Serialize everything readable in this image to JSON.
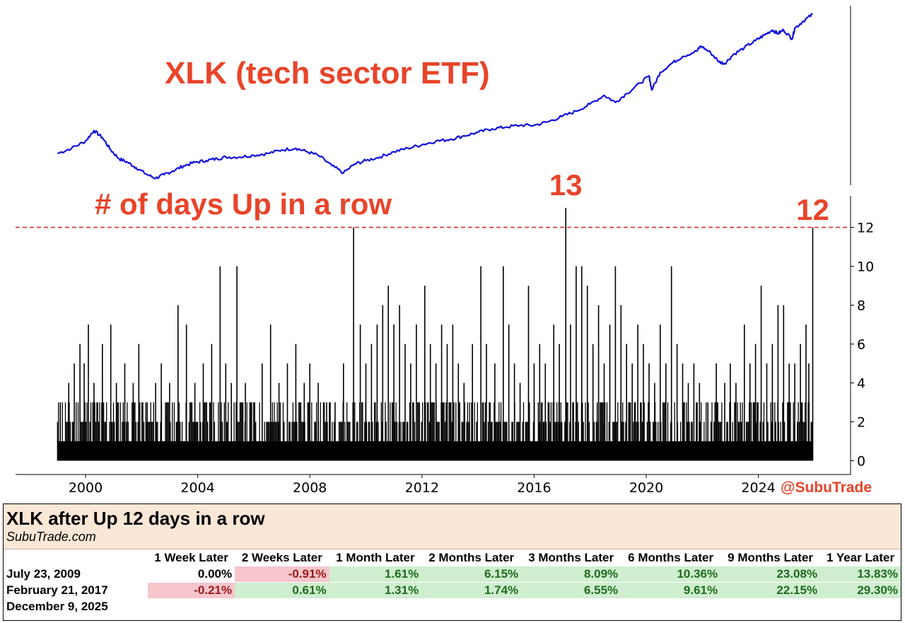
{
  "chart_data": [
    {
      "type": "line",
      "title": "XLK (tech sector ETF)",
      "series": [
        {
          "name": "XLK",
          "color": "#1010e0",
          "x": [
            1999.0,
            1999.5,
            2000.0,
            2000.3,
            2000.6,
            2000.9,
            2001.2,
            2001.5,
            2001.8,
            2002.2,
            2002.5,
            2002.8,
            2003.1,
            2003.5,
            2003.9,
            2004.3,
            2004.7,
            2005.0,
            2005.5,
            2006.0,
            2006.5,
            2007.0,
            2007.5,
            2007.9,
            2008.3,
            2008.8,
            2009.2,
            2009.6,
            2010.0,
            2010.5,
            2011.0,
            2011.5,
            2012.0,
            2012.5,
            2013.0,
            2013.5,
            2014.0,
            2014.5,
            2015.0,
            2015.5,
            2016.0,
            2016.5,
            2017.0,
            2017.5,
            2018.0,
            2018.5,
            2018.9,
            2019.3,
            2019.8,
            2020.1,
            2020.2,
            2020.5,
            2020.9,
            2021.3,
            2021.8,
            2021.95,
            2022.3,
            2022.6,
            2022.8,
            2023.1,
            2023.5,
            2023.9,
            2024.2,
            2024.5,
            2024.7,
            2024.9,
            2025.2,
            2025.3,
            2025.6,
            2025.94
          ],
          "values": [
            0.12,
            0.15,
            0.19,
            0.25,
            0.21,
            0.14,
            0.09,
            0.07,
            0.04,
            0.0,
            -0.02,
            0.0,
            0.02,
            0.05,
            0.07,
            0.08,
            0.09,
            0.1,
            0.1,
            0.11,
            0.12,
            0.14,
            0.15,
            0.13,
            0.11,
            0.05,
            0.01,
            0.06,
            0.08,
            0.1,
            0.13,
            0.15,
            0.17,
            0.19,
            0.2,
            0.22,
            0.24,
            0.26,
            0.27,
            0.28,
            0.28,
            0.3,
            0.33,
            0.36,
            0.4,
            0.45,
            0.41,
            0.46,
            0.52,
            0.56,
            0.48,
            0.58,
            0.63,
            0.67,
            0.7,
            0.73,
            0.69,
            0.64,
            0.63,
            0.68,
            0.72,
            0.76,
            0.79,
            0.82,
            0.8,
            0.82,
            0.77,
            0.83,
            0.87,
            0.91
          ]
        }
      ]
    },
    {
      "type": "bar",
      "title": "# of days Up in a row",
      "xlim": [
        1997.5,
        2027.0
      ],
      "ylim": [
        -0.5,
        13.5
      ],
      "x_ticks": [
        "2000",
        "2004",
        "2008",
        "2012",
        "2016",
        "2020",
        "2024"
      ],
      "y_ticks": [
        "0",
        "2",
        "4",
        "6",
        "8",
        "10",
        "12"
      ],
      "threshold_line": 12,
      "peak_annotations": [
        {
          "x": 2017.13,
          "label": "13"
        },
        {
          "x": 2025.94,
          "label": "12"
        }
      ],
      "spikes": [
        {
          "x": 1999.1,
          "y": 3
        },
        {
          "x": 1999.4,
          "y": 4
        },
        {
          "x": 1999.6,
          "y": 5
        },
        {
          "x": 1999.8,
          "y": 6
        },
        {
          "x": 1999.95,
          "y": 5
        },
        {
          "x": 2000.1,
          "y": 7
        },
        {
          "x": 2000.3,
          "y": 4
        },
        {
          "x": 2000.6,
          "y": 6
        },
        {
          "x": 2000.9,
          "y": 7
        },
        {
          "x": 2001.1,
          "y": 4
        },
        {
          "x": 2001.4,
          "y": 5
        },
        {
          "x": 2001.7,
          "y": 4
        },
        {
          "x": 2001.9,
          "y": 6
        },
        {
          "x": 2002.2,
          "y": 3
        },
        {
          "x": 2002.5,
          "y": 4
        },
        {
          "x": 2002.7,
          "y": 5
        },
        {
          "x": 2003.0,
          "y": 4
        },
        {
          "x": 2003.3,
          "y": 8
        },
        {
          "x": 2003.6,
          "y": 7
        },
        {
          "x": 2003.9,
          "y": 4
        },
        {
          "x": 2004.2,
          "y": 5
        },
        {
          "x": 2004.5,
          "y": 6
        },
        {
          "x": 2004.8,
          "y": 10
        },
        {
          "x": 2005.0,
          "y": 5
        },
        {
          "x": 2005.2,
          "y": 4
        },
        {
          "x": 2005.4,
          "y": 10
        },
        {
          "x": 2005.7,
          "y": 4
        },
        {
          "x": 2006.0,
          "y": 3
        },
        {
          "x": 2006.3,
          "y": 5
        },
        {
          "x": 2006.6,
          "y": 7
        },
        {
          "x": 2006.9,
          "y": 4
        },
        {
          "x": 2007.2,
          "y": 5
        },
        {
          "x": 2007.5,
          "y": 6
        },
        {
          "x": 2007.8,
          "y": 4
        },
        {
          "x": 2008.0,
          "y": 5
        },
        {
          "x": 2008.3,
          "y": 4
        },
        {
          "x": 2008.6,
          "y": 3
        },
        {
          "x": 2008.9,
          "y": 3
        },
        {
          "x": 2009.2,
          "y": 5
        },
        {
          "x": 2009.56,
          "y": 12
        },
        {
          "x": 2009.8,
          "y": 7
        },
        {
          "x": 2010.0,
          "y": 5
        },
        {
          "x": 2010.2,
          "y": 6
        },
        {
          "x": 2010.4,
          "y": 7
        },
        {
          "x": 2010.6,
          "y": 8
        },
        {
          "x": 2010.8,
          "y": 9
        },
        {
          "x": 2011.0,
          "y": 7
        },
        {
          "x": 2011.2,
          "y": 8
        },
        {
          "x": 2011.4,
          "y": 6
        },
        {
          "x": 2011.6,
          "y": 5
        },
        {
          "x": 2011.8,
          "y": 7
        },
        {
          "x": 2012.1,
          "y": 9
        },
        {
          "x": 2012.3,
          "y": 6
        },
        {
          "x": 2012.5,
          "y": 5
        },
        {
          "x": 2012.7,
          "y": 7
        },
        {
          "x": 2012.9,
          "y": 6
        },
        {
          "x": 2013.1,
          "y": 7
        },
        {
          "x": 2013.3,
          "y": 5
        },
        {
          "x": 2013.5,
          "y": 4
        },
        {
          "x": 2013.8,
          "y": 6
        },
        {
          "x": 2014.1,
          "y": 10
        },
        {
          "x": 2014.3,
          "y": 6
        },
        {
          "x": 2014.6,
          "y": 5
        },
        {
          "x": 2014.9,
          "y": 10
        },
        {
          "x": 2015.1,
          "y": 7
        },
        {
          "x": 2015.3,
          "y": 5
        },
        {
          "x": 2015.5,
          "y": 4
        },
        {
          "x": 2015.8,
          "y": 9
        },
        {
          "x": 2016.0,
          "y": 5
        },
        {
          "x": 2016.2,
          "y": 6
        },
        {
          "x": 2016.4,
          "y": 5
        },
        {
          "x": 2016.7,
          "y": 7
        },
        {
          "x": 2016.9,
          "y": 6
        },
        {
          "x": 2017.13,
          "y": 13
        },
        {
          "x": 2017.3,
          "y": 7
        },
        {
          "x": 2017.5,
          "y": 10
        },
        {
          "x": 2017.7,
          "y": 10
        },
        {
          "x": 2017.9,
          "y": 9
        },
        {
          "x": 2018.1,
          "y": 6
        },
        {
          "x": 2018.3,
          "y": 8
        },
        {
          "x": 2018.5,
          "y": 5
        },
        {
          "x": 2018.7,
          "y": 7
        },
        {
          "x": 2018.9,
          "y": 10
        },
        {
          "x": 2019.1,
          "y": 8
        },
        {
          "x": 2019.3,
          "y": 6
        },
        {
          "x": 2019.5,
          "y": 5
        },
        {
          "x": 2019.7,
          "y": 7
        },
        {
          "x": 2019.9,
          "y": 6
        },
        {
          "x": 2020.1,
          "y": 5
        },
        {
          "x": 2020.3,
          "y": 4
        },
        {
          "x": 2020.5,
          "y": 7
        },
        {
          "x": 2020.7,
          "y": 5
        },
        {
          "x": 2020.9,
          "y": 10
        },
        {
          "x": 2021.1,
          "y": 6
        },
        {
          "x": 2021.3,
          "y": 5
        },
        {
          "x": 2021.5,
          "y": 4
        },
        {
          "x": 2021.7,
          "y": 5
        },
        {
          "x": 2021.9,
          "y": 4
        },
        {
          "x": 2022.2,
          "y": 3
        },
        {
          "x": 2022.5,
          "y": 5
        },
        {
          "x": 2022.8,
          "y": 4
        },
        {
          "x": 2023.0,
          "y": 5
        },
        {
          "x": 2023.2,
          "y": 4
        },
        {
          "x": 2023.5,
          "y": 7
        },
        {
          "x": 2023.7,
          "y": 5
        },
        {
          "x": 2023.9,
          "y": 6
        },
        {
          "x": 2024.1,
          "y": 9
        },
        {
          "x": 2024.3,
          "y": 5
        },
        {
          "x": 2024.5,
          "y": 6
        },
        {
          "x": 2024.7,
          "y": 8
        },
        {
          "x": 2024.9,
          "y": 8
        },
        {
          "x": 2025.1,
          "y": 5
        },
        {
          "x": 2025.3,
          "y": 5
        },
        {
          "x": 2025.5,
          "y": 6
        },
        {
          "x": 2025.7,
          "y": 7
        },
        {
          "x": 2025.8,
          "y": 5
        },
        {
          "x": 2025.94,
          "y": 12
        }
      ]
    }
  ],
  "watermark": "@SubuTrade",
  "table": {
    "title": "XLK after Up 12 days in a row",
    "subtitle": "SubuTrade.com",
    "columns": [
      "1 Week Later",
      "2 Weeks Later",
      "1 Month Later",
      "2 Months Later",
      "3 Months Later",
      "6 Months Later",
      "9 Months Later",
      "1 Year Later"
    ],
    "rows": [
      {
        "date": "July 23, 2009",
        "values": [
          "0.00%",
          "-0.91%",
          "1.61%",
          "6.15%",
          "8.09%",
          "10.36%",
          "23.08%",
          "13.83%"
        ]
      },
      {
        "date": "February 21, 2017",
        "values": [
          "-0.21%",
          "0.61%",
          "1.31%",
          "1.74%",
          "6.55%",
          "9.61%",
          "22.15%",
          "29.30%"
        ]
      },
      {
        "date": "December 9, 2025",
        "values": [
          "",
          "",
          "",
          "",
          "",
          "",
          "",
          ""
        ]
      }
    ]
  }
}
